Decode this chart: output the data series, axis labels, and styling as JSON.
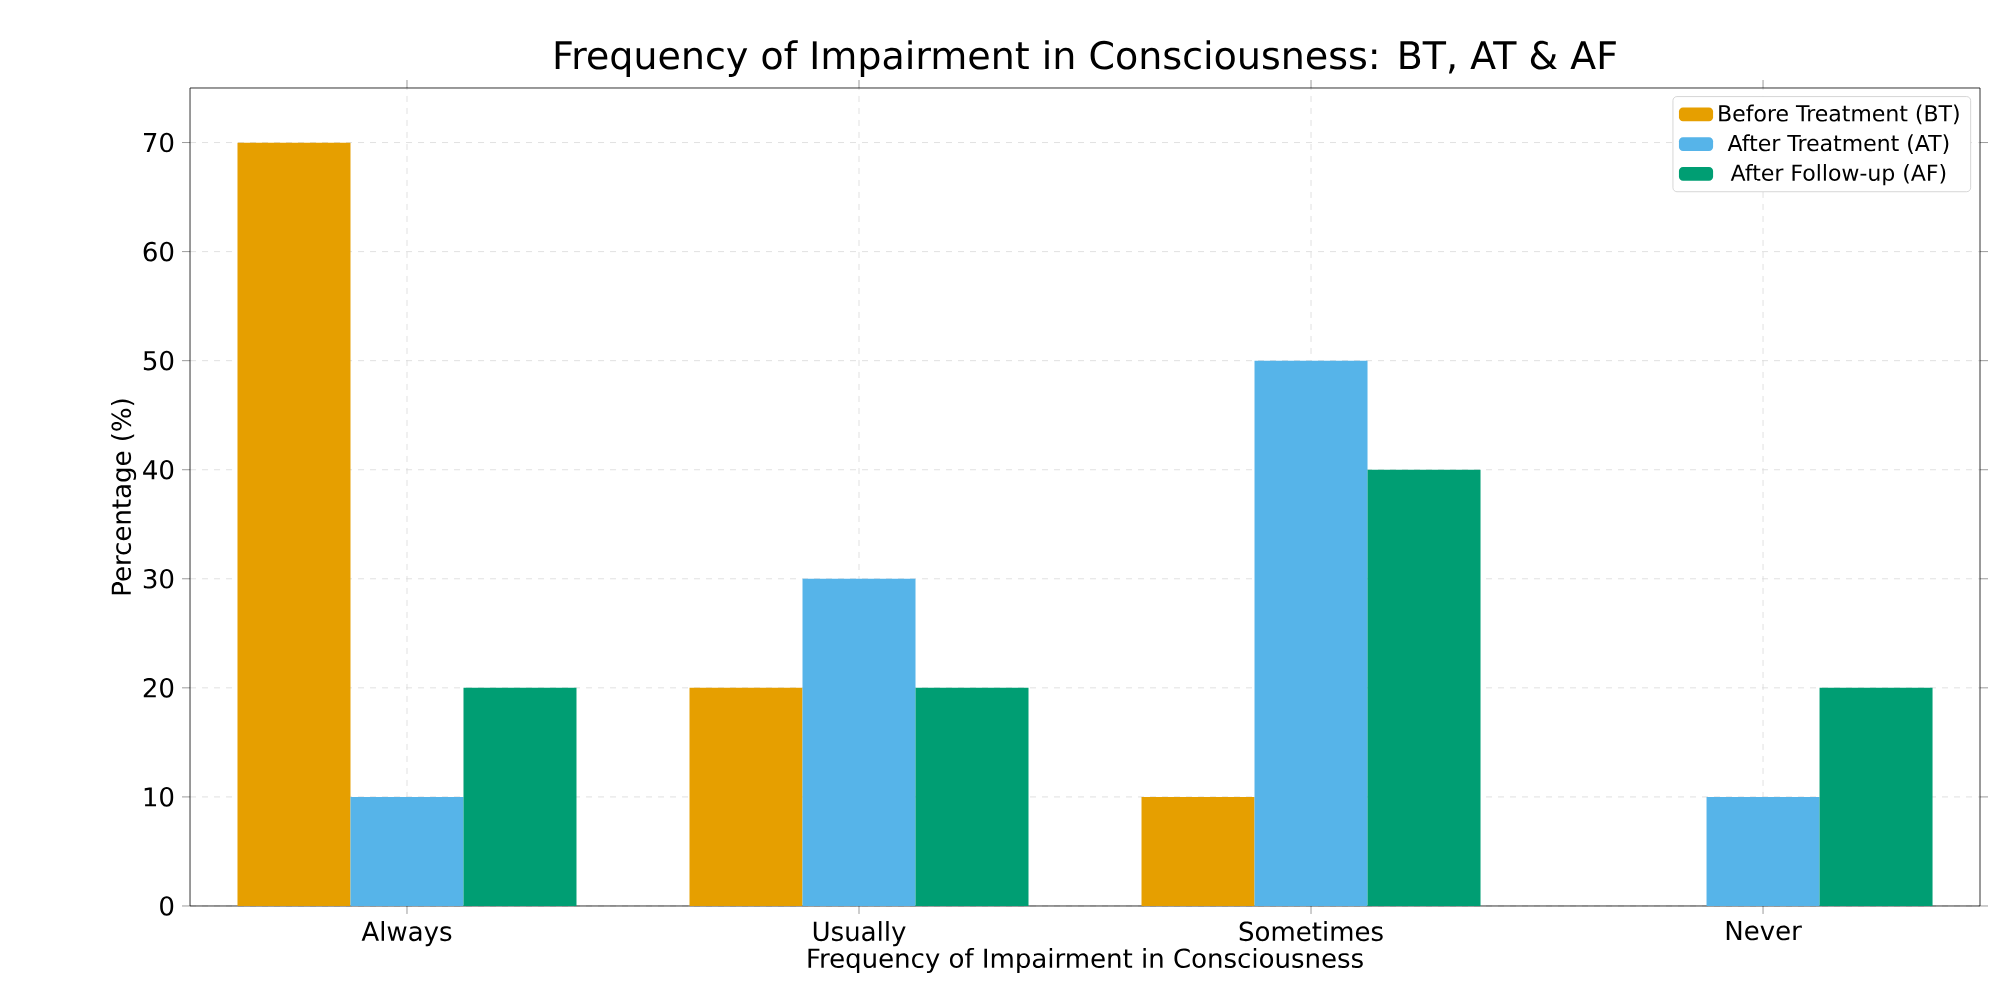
{
  "chart_data": {
    "type": "bar",
    "title": "Frequency of Impairment in Consciousness: BT, AT & AF",
    "xlabel": "Frequency of Impairment in Consciousness",
    "ylabel": "Percentage (%)",
    "categories": [
      "Always",
      "Usually",
      "Sometimes",
      "Never"
    ],
    "series": [
      {
        "name": "Before Treatment (BT)",
        "color": "#e69f00",
        "values": [
          70,
          20,
          10,
          0
        ]
      },
      {
        "name": "After Treatment (AT)",
        "color": "#56b4e9",
        "values": [
          10,
          30,
          50,
          10
        ]
      },
      {
        "name": "After Follow-up (AF)",
        "color": "#009e73",
        "values": [
          20,
          20,
          40,
          20
        ]
      }
    ],
    "ylim": [
      0,
      75
    ],
    "yticks": [
      0,
      10,
      20,
      30,
      40,
      50,
      60,
      70
    ],
    "grid": true,
    "legend": "top right"
  }
}
